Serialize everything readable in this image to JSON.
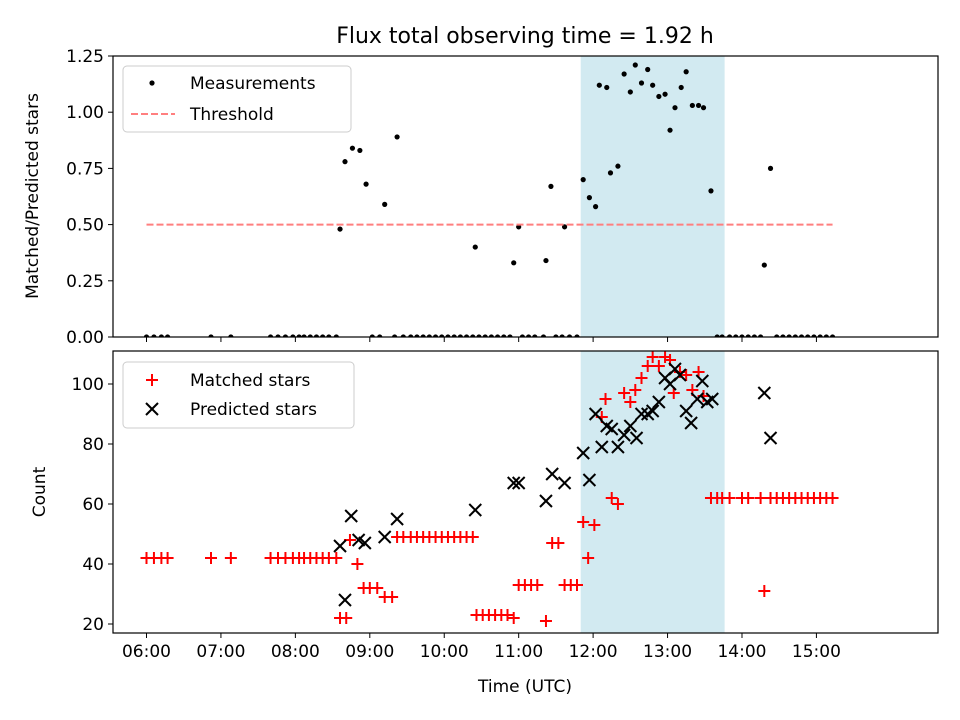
{
  "chart_data": [
    {
      "type": "scatter",
      "title": "Flux total observing time = 1.92 h",
      "ylabel": "Matched/Predicted stars",
      "ylim": [
        0,
        1.25
      ],
      "yticks": [
        "0.00",
        "0.25",
        "0.50",
        "0.75",
        "1.00",
        "1.25"
      ],
      "xlim": [
        "05:33",
        "16:38"
      ],
      "highlight_span": [
        "11:50",
        "13:46"
      ],
      "highlight_color": "#add8e6",
      "legend_placement": "upper-left",
      "series": [
        {
          "name": "Measurements",
          "marker": "dot",
          "color": "#000000",
          "points": [
            [
              "06:00",
              0
            ],
            [
              "06:06",
              0
            ],
            [
              "06:12",
              0
            ],
            [
              "06:17",
              0
            ],
            [
              "06:52",
              0
            ],
            [
              "07:08",
              0
            ],
            [
              "07:40",
              0
            ],
            [
              "07:46",
              0
            ],
            [
              "07:52",
              0
            ],
            [
              "07:58",
              0
            ],
            [
              "08:03",
              0
            ],
            [
              "08:07",
              0
            ],
            [
              "08:12",
              0
            ],
            [
              "08:17",
              0
            ],
            [
              "08:22",
              0
            ],
            [
              "08:27",
              0
            ],
            [
              "08:33",
              0
            ],
            [
              "08:36",
              0.48
            ],
            [
              "08:40",
              0.78
            ],
            [
              "08:46",
              0.84
            ],
            [
              "08:52",
              0.83
            ],
            [
              "08:57",
              0.68
            ],
            [
              "09:02",
              0
            ],
            [
              "09:08",
              0
            ],
            [
              "09:12",
              0.59
            ],
            [
              "09:20",
              0
            ],
            [
              "09:22",
              0.89
            ],
            [
              "09:27",
              0
            ],
            [
              "09:33",
              0
            ],
            [
              "09:38",
              0
            ],
            [
              "09:43",
              0
            ],
            [
              "09:48",
              0
            ],
            [
              "09:53",
              0
            ],
            [
              "09:58",
              0
            ],
            [
              "10:03",
              0
            ],
            [
              "10:08",
              0
            ],
            [
              "10:13",
              0
            ],
            [
              "10:18",
              0
            ],
            [
              "10:23",
              0
            ],
            [
              "10:25",
              0.4
            ],
            [
              "10:28",
              0
            ],
            [
              "10:33",
              0
            ],
            [
              "10:38",
              0
            ],
            [
              "10:43",
              0
            ],
            [
              "10:48",
              0
            ],
            [
              "10:53",
              0
            ],
            [
              "10:56",
              0.33
            ],
            [
              "11:00",
              0.49
            ],
            [
              "11:03",
              0
            ],
            [
              "11:08",
              0
            ],
            [
              "11:13",
              0
            ],
            [
              "11:20",
              0
            ],
            [
              "11:22",
              0.34
            ],
            [
              "11:26",
              0.67
            ],
            [
              "11:30",
              0
            ],
            [
              "11:35",
              0
            ],
            [
              "11:37",
              0.49
            ],
            [
              "11:41",
              0
            ],
            [
              "11:47",
              0
            ],
            [
              "11:52",
              0.7
            ],
            [
              "11:57",
              0.62
            ],
            [
              "12:02",
              0.58
            ],
            [
              "12:05",
              1.12
            ],
            [
              "12:11",
              1.11
            ],
            [
              "12:14",
              0.73
            ],
            [
              "12:20",
              0.76
            ],
            [
              "12:25",
              1.17
            ],
            [
              "12:30",
              1.09
            ],
            [
              "12:34",
              1.21
            ],
            [
              "12:39",
              1.13
            ],
            [
              "12:44",
              1.19
            ],
            [
              "12:48",
              1.12
            ],
            [
              "12:53",
              1.07
            ],
            [
              "12:58",
              1.08
            ],
            [
              "13:02",
              0.92
            ],
            [
              "13:06",
              1.02
            ],
            [
              "13:11",
              1.11
            ],
            [
              "13:15",
              1.18
            ],
            [
              "13:20",
              1.03
            ],
            [
              "13:25",
              1.03
            ],
            [
              "13:29",
              1.02
            ],
            [
              "13:35",
              0.65
            ],
            [
              "13:40",
              0
            ],
            [
              "13:44",
              0
            ],
            [
              "13:50",
              0
            ],
            [
              "13:55",
              0
            ],
            [
              "14:00",
              0
            ],
            [
              "14:05",
              0
            ],
            [
              "14:10",
              0
            ],
            [
              "14:15",
              0
            ],
            [
              "14:18",
              0.32
            ],
            [
              "14:23",
              0.75
            ],
            [
              "14:28",
              0
            ],
            [
              "14:33",
              0
            ],
            [
              "14:38",
              0
            ],
            [
              "14:43",
              0
            ],
            [
              "14:48",
              0
            ],
            [
              "14:53",
              0
            ],
            [
              "14:58",
              0
            ],
            [
              "15:03",
              0
            ],
            [
              "15:08",
              0
            ],
            [
              "15:13",
              0
            ]
          ]
        },
        {
          "name": "Threshold",
          "marker": "dashed-line",
          "color": "#ff7f7f",
          "points": [
            [
              "06:00",
              0.5
            ],
            [
              "15:13",
              0.5
            ]
          ]
        }
      ]
    },
    {
      "type": "scatter",
      "xlabel": "Time (UTC)",
      "ylabel": "Count",
      "ylim": [
        17,
        111
      ],
      "yticks": [
        "20",
        "40",
        "60",
        "80",
        "100"
      ],
      "xlim": [
        "05:33",
        "16:38"
      ],
      "xticks": [
        "06:00",
        "07:00",
        "08:00",
        "09:00",
        "10:00",
        "11:00",
        "12:00",
        "13:00",
        "14:00",
        "15:00"
      ],
      "highlight_span": [
        "11:50",
        "13:46"
      ],
      "highlight_color": "#add8e6",
      "legend_placement": "upper-left",
      "series": [
        {
          "name": "Matched stars",
          "marker": "plus",
          "color": "#ff0000",
          "points": [
            [
              "06:00",
              42
            ],
            [
              "06:06",
              42
            ],
            [
              "06:12",
              42
            ],
            [
              "06:17",
              42
            ],
            [
              "06:52",
              42
            ],
            [
              "07:08",
              42
            ],
            [
              "07:40",
              42
            ],
            [
              "07:46",
              42
            ],
            [
              "07:52",
              42
            ],
            [
              "07:58",
              42
            ],
            [
              "08:03",
              42
            ],
            [
              "08:07",
              42
            ],
            [
              "08:12",
              42
            ],
            [
              "08:17",
              42
            ],
            [
              "08:22",
              42
            ],
            [
              "08:27",
              42
            ],
            [
              "08:33",
              42
            ],
            [
              "08:36",
              22
            ],
            [
              "08:41",
              22
            ],
            [
              "08:44",
              48
            ],
            [
              "08:50",
              40
            ],
            [
              "08:55",
              32
            ],
            [
              "09:00",
              32
            ],
            [
              "09:06",
              32
            ],
            [
              "09:12",
              29
            ],
            [
              "09:18",
              29
            ],
            [
              "09:22",
              49
            ],
            [
              "09:27",
              49
            ],
            [
              "09:33",
              49
            ],
            [
              "09:38",
              49
            ],
            [
              "09:43",
              49
            ],
            [
              "09:48",
              49
            ],
            [
              "09:53",
              49
            ],
            [
              "09:58",
              49
            ],
            [
              "10:03",
              49
            ],
            [
              "10:08",
              49
            ],
            [
              "10:13",
              49
            ],
            [
              "10:18",
              49
            ],
            [
              "10:23",
              49
            ],
            [
              "10:26",
              23
            ],
            [
              "10:31",
              23
            ],
            [
              "10:36",
              23
            ],
            [
              "10:41",
              23
            ],
            [
              "10:46",
              23
            ],
            [
              "10:51",
              23
            ],
            [
              "10:56",
              22
            ],
            [
              "11:00",
              33
            ],
            [
              "11:05",
              33
            ],
            [
              "11:10",
              33
            ],
            [
              "11:15",
              33
            ],
            [
              "11:22",
              21
            ],
            [
              "11:27",
              47
            ],
            [
              "11:32",
              47
            ],
            [
              "11:37",
              33
            ],
            [
              "11:42",
              33
            ],
            [
              "11:47",
              33
            ],
            [
              "11:52",
              54
            ],
            [
              "11:56",
              42
            ],
            [
              "12:01",
              53
            ],
            [
              "12:07",
              89
            ],
            [
              "12:10",
              95
            ],
            [
              "12:15",
              62
            ],
            [
              "12:20",
              60
            ],
            [
              "12:25",
              97
            ],
            [
              "12:30",
              94
            ],
            [
              "12:34",
              98
            ],
            [
              "12:39",
              102
            ],
            [
              "12:44",
              106
            ],
            [
              "12:48",
              109
            ],
            [
              "12:53",
              106
            ],
            [
              "12:58",
              109
            ],
            [
              "13:02",
              108
            ],
            [
              "13:05",
              97
            ],
            [
              "13:10",
              104
            ],
            [
              "13:15",
              103
            ],
            [
              "13:20",
              98
            ],
            [
              "13:25",
              104
            ],
            [
              "13:29",
              96
            ],
            [
              "13:35",
              62
            ],
            [
              "13:40",
              62
            ],
            [
              "13:44",
              62
            ],
            [
              "13:50",
              62
            ],
            [
              "14:00",
              62
            ],
            [
              "14:05",
              62
            ],
            [
              "14:15",
              62
            ],
            [
              "14:18",
              31
            ],
            [
              "14:23",
              62
            ],
            [
              "14:28",
              62
            ],
            [
              "14:33",
              62
            ],
            [
              "14:38",
              62
            ],
            [
              "14:43",
              62
            ],
            [
              "14:48",
              62
            ],
            [
              "14:53",
              62
            ],
            [
              "14:58",
              62
            ],
            [
              "15:03",
              62
            ],
            [
              "15:08",
              62
            ],
            [
              "15:13",
              62
            ]
          ]
        },
        {
          "name": "Predicted stars",
          "marker": "x",
          "color": "#000000",
          "points": [
            [
              "08:36",
              46
            ],
            [
              "08:40",
              28
            ],
            [
              "08:45",
              56
            ],
            [
              "08:51",
              48
            ],
            [
              "08:56",
              47
            ],
            [
              "09:12",
              49
            ],
            [
              "09:22",
              55
            ],
            [
              "10:25",
              58
            ],
            [
              "10:56",
              67
            ],
            [
              "11:00",
              67
            ],
            [
              "11:22",
              61
            ],
            [
              "11:27",
              70
            ],
            [
              "11:37",
              67
            ],
            [
              "11:52",
              77
            ],
            [
              "11:57",
              68
            ],
            [
              "12:02",
              90
            ],
            [
              "12:07",
              79
            ],
            [
              "12:11",
              86
            ],
            [
              "12:15",
              85
            ],
            [
              "12:20",
              79
            ],
            [
              "12:25",
              83
            ],
            [
              "12:30",
              86
            ],
            [
              "12:35",
              82
            ],
            [
              "12:39",
              90
            ],
            [
              "12:44",
              90
            ],
            [
              "12:48",
              91
            ],
            [
              "12:53",
              94
            ],
            [
              "12:58",
              102
            ],
            [
              "13:02",
              100
            ],
            [
              "13:06",
              105
            ],
            [
              "13:10",
              103
            ],
            [
              "13:15",
              91
            ],
            [
              "13:19",
              87
            ],
            [
              "13:24",
              95
            ],
            [
              "13:28",
              101
            ],
            [
              "13:32",
              94
            ],
            [
              "13:36",
              95
            ],
            [
              "14:18",
              97
            ],
            [
              "14:23",
              82
            ]
          ]
        }
      ]
    }
  ]
}
